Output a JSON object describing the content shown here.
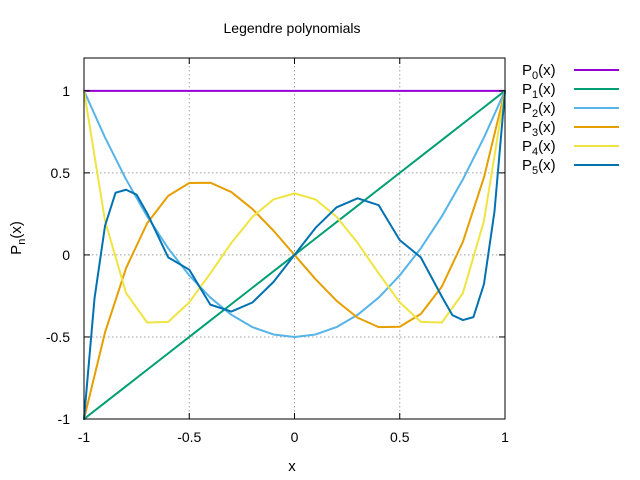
{
  "chart_data": {
    "type": "line",
    "title": "Legendre polynomials",
    "xlabel": "x",
    "ylabel": {
      "base": "P",
      "sub": "n",
      "suffix": "(x)"
    },
    "xlim": [
      -1,
      1
    ],
    "ylim": [
      -1,
      1.2
    ],
    "xticks": [
      -1,
      -0.5,
      0,
      0.5,
      1
    ],
    "xtick_labels": [
      "-1",
      "-0.5",
      "0",
      "0.5",
      "1"
    ],
    "yticks": [
      -1,
      -0.5,
      0,
      0.5,
      1
    ],
    "ytick_labels": [
      "-1",
      "-0.5",
      "0",
      "0.5",
      "1"
    ],
    "grid": true,
    "legend_position": "outside-right",
    "series": [
      {
        "name": "P0(x)",
        "sub": "0",
        "color": "#9400d3",
        "x": [
          -1,
          -0.9,
          -0.8,
          -0.7,
          -0.6,
          -0.5,
          -0.4,
          -0.3,
          -0.2,
          -0.1,
          0,
          0.1,
          0.2,
          0.3,
          0.4,
          0.5,
          0.6,
          0.7,
          0.8,
          0.9,
          1
        ],
        "y": [
          1,
          1,
          1,
          1,
          1,
          1,
          1,
          1,
          1,
          1,
          1,
          1,
          1,
          1,
          1,
          1,
          1,
          1,
          1,
          1,
          1
        ]
      },
      {
        "name": "P1(x)",
        "sub": "1",
        "color": "#009e73",
        "x": [
          -1,
          -0.9,
          -0.8,
          -0.7,
          -0.6,
          -0.5,
          -0.4,
          -0.3,
          -0.2,
          -0.1,
          0,
          0.1,
          0.2,
          0.3,
          0.4,
          0.5,
          0.6,
          0.7,
          0.8,
          0.9,
          1
        ],
        "y": [
          -1,
          -0.9,
          -0.8,
          -0.7,
          -0.6,
          -0.5,
          -0.4,
          -0.3,
          -0.2,
          -0.1,
          0,
          0.1,
          0.2,
          0.3,
          0.4,
          0.5,
          0.6,
          0.7,
          0.8,
          0.9,
          1
        ]
      },
      {
        "name": "P2(x)",
        "sub": "2",
        "color": "#56b4e9",
        "x": [
          -1,
          -0.9,
          -0.8,
          -0.7,
          -0.6,
          -0.5,
          -0.4,
          -0.3,
          -0.2,
          -0.1,
          0,
          0.1,
          0.2,
          0.3,
          0.4,
          0.5,
          0.6,
          0.7,
          0.8,
          0.9,
          1
        ],
        "y": [
          1,
          0.715,
          0.46,
          0.235,
          0.04,
          -0.125,
          -0.26,
          -0.365,
          -0.44,
          -0.485,
          -0.5,
          -0.485,
          -0.44,
          -0.365,
          -0.26,
          -0.125,
          0.04,
          0.235,
          0.46,
          0.715,
          1
        ]
      },
      {
        "name": "P3(x)",
        "sub": "3",
        "color": "#e69f00",
        "x": [
          -1,
          -0.9,
          -0.8,
          -0.7,
          -0.6,
          -0.5,
          -0.4,
          -0.3,
          -0.2,
          -0.1,
          0,
          0.1,
          0.2,
          0.3,
          0.4,
          0.5,
          0.6,
          0.7,
          0.8,
          0.9,
          1
        ],
        "y": [
          -1,
          -0.472,
          -0.08,
          0.193,
          0.36,
          0.438,
          0.44,
          0.383,
          0.28,
          0.148,
          0,
          -0.148,
          -0.28,
          -0.383,
          -0.44,
          -0.438,
          -0.36,
          -0.193,
          0.08,
          0.472,
          1
        ]
      },
      {
        "name": "P4(x)",
        "sub": "4",
        "color": "#f0e442",
        "x": [
          -1,
          -0.9,
          -0.8,
          -0.7,
          -0.6,
          -0.5,
          -0.4,
          -0.3,
          -0.2,
          -0.1,
          0,
          0.1,
          0.2,
          0.3,
          0.4,
          0.5,
          0.6,
          0.7,
          0.8,
          0.9,
          1
        ],
        "y": [
          1,
          0.207,
          -0.233,
          -0.412,
          -0.408,
          -0.289,
          -0.113,
          0.073,
          0.232,
          0.338,
          0.375,
          0.338,
          0.232,
          0.073,
          -0.113,
          -0.289,
          -0.408,
          -0.412,
          -0.233,
          0.207,
          1
        ]
      },
      {
        "name": "P5(x)",
        "sub": "5",
        "color": "#0072b2",
        "x": [
          -1,
          -0.95,
          -0.9,
          -0.85,
          -0.8,
          -0.75,
          -0.7,
          -0.6,
          -0.5,
          -0.4,
          -0.3,
          -0.2,
          -0.1,
          0,
          0.1,
          0.2,
          0.3,
          0.4,
          0.5,
          0.6,
          0.7,
          0.75,
          0.8,
          0.85,
          0.9,
          0.95,
          1
        ],
        "y": [
          -1,
          -0.264,
          0.178,
          0.379,
          0.397,
          0.367,
          0.254,
          -0.015,
          -0.09,
          -0.303,
          -0.345,
          -0.29,
          -0.165,
          0,
          0.165,
          0.29,
          0.345,
          0.303,
          0.09,
          -0.015,
          -0.254,
          -0.367,
          -0.397,
          -0.379,
          -0.178,
          0.264,
          1
        ]
      }
    ]
  }
}
